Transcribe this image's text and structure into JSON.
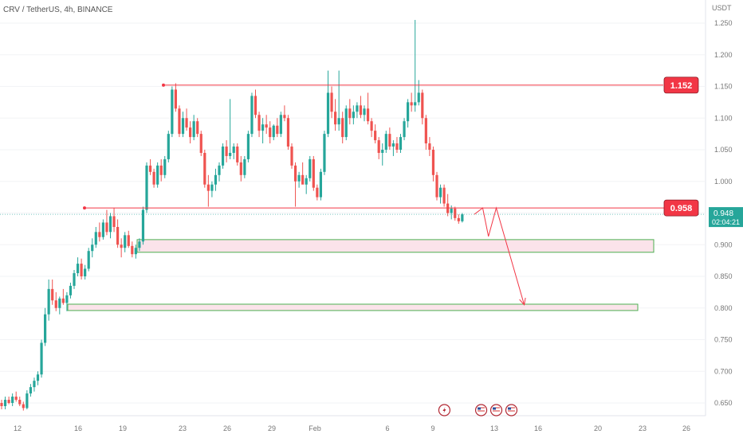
{
  "chart_data": {
    "type": "candlestick",
    "title": "CRV / TetherUS, 4h, BINANCE",
    "unit": "USDT",
    "ylim": [
      0.625,
      1.275
    ],
    "y_ticks": [
      "1.250",
      "1.200",
      "1.150",
      "1.100",
      "1.050",
      "1.000",
      "0.950",
      "0.900",
      "0.850",
      "0.800",
      "0.750",
      "0.700",
      "0.650"
    ],
    "x_ticks": [
      "12",
      "16",
      "19",
      "23",
      "26",
      "29",
      "Feb",
      "6",
      "9",
      "13",
      "16",
      "20",
      "23",
      "26"
    ],
    "candles": [
      [
        0.65,
        0.655,
        0.64,
        0.645
      ],
      [
        0.645,
        0.66,
        0.64,
        0.655
      ],
      [
        0.655,
        0.66,
        0.648,
        0.65
      ],
      [
        0.65,
        0.665,
        0.645,
        0.66
      ],
      [
        0.66,
        0.668,
        0.652,
        0.655
      ],
      [
        0.655,
        0.66,
        0.645,
        0.648
      ],
      [
        0.648,
        0.652,
        0.638,
        0.642
      ],
      [
        0.642,
        0.67,
        0.64,
        0.665
      ],
      [
        0.665,
        0.68,
        0.66,
        0.675
      ],
      [
        0.675,
        0.69,
        0.668,
        0.685
      ],
      [
        0.685,
        0.7,
        0.678,
        0.695
      ],
      [
        0.695,
        0.75,
        0.69,
        0.745
      ],
      [
        0.745,
        0.8,
        0.74,
        0.79
      ],
      [
        0.79,
        0.845,
        0.78,
        0.83
      ],
      [
        0.83,
        0.845,
        0.805,
        0.812
      ],
      [
        0.812,
        0.825,
        0.795,
        0.8
      ],
      [
        0.8,
        0.818,
        0.79,
        0.815
      ],
      [
        0.815,
        0.83,
        0.805,
        0.808
      ],
      [
        0.808,
        0.825,
        0.795,
        0.82
      ],
      [
        0.82,
        0.84,
        0.815,
        0.835
      ],
      [
        0.835,
        0.86,
        0.83,
        0.855
      ],
      [
        0.855,
        0.88,
        0.85,
        0.87
      ],
      [
        0.87,
        0.878,
        0.845,
        0.85
      ],
      [
        0.85,
        0.868,
        0.845,
        0.862
      ],
      [
        0.862,
        0.895,
        0.858,
        0.89
      ],
      [
        0.89,
        0.91,
        0.88,
        0.9
      ],
      [
        0.9,
        0.928,
        0.895,
        0.92
      ],
      [
        0.92,
        0.935,
        0.905,
        0.912
      ],
      [
        0.912,
        0.94,
        0.908,
        0.935
      ],
      [
        0.935,
        0.955,
        0.915,
        0.92
      ],
      [
        0.92,
        0.95,
        0.91,
        0.945
      ],
      [
        0.945,
        0.958,
        0.92,
        0.928
      ],
      [
        0.928,
        0.94,
        0.895,
        0.9
      ],
      [
        0.9,
        0.91,
        0.88,
        0.895
      ],
      [
        0.895,
        0.92,
        0.888,
        0.915
      ],
      [
        0.915,
        0.922,
        0.895,
        0.898
      ],
      [
        0.898,
        0.905,
        0.88,
        0.885
      ],
      [
        0.885,
        0.9,
        0.878,
        0.895
      ],
      [
        0.895,
        0.91,
        0.89,
        0.905
      ],
      [
        0.905,
        0.96,
        0.9,
        0.955
      ],
      [
        0.955,
        1.03,
        0.95,
        1.025
      ],
      [
        1.025,
        1.035,
        1.01,
        1.015
      ],
      [
        1.015,
        1.02,
        0.99,
        0.995
      ],
      [
        0.995,
        1.03,
        0.99,
        1.025
      ],
      [
        1.025,
        1.035,
        1.0,
        1.01
      ],
      [
        1.01,
        1.04,
        1.005,
        1.035
      ],
      [
        1.035,
        1.08,
        1.03,
        1.075
      ],
      [
        1.075,
        1.15,
        1.07,
        1.145
      ],
      [
        1.145,
        1.155,
        1.11,
        1.115
      ],
      [
        1.115,
        1.12,
        1.07,
        1.075
      ],
      [
        1.075,
        1.11,
        1.07,
        1.1
      ],
      [
        1.1,
        1.115,
        1.08,
        1.085
      ],
      [
        1.085,
        1.095,
        1.06,
        1.07
      ],
      [
        1.07,
        1.105,
        1.065,
        1.095
      ],
      [
        1.095,
        1.1,
        1.07,
        1.075
      ],
      [
        1.075,
        1.08,
        1.04,
        1.045
      ],
      [
        1.045,
        1.05,
        0.99,
        0.995
      ],
      [
        0.995,
        1.01,
        0.96,
        0.985
      ],
      [
        0.985,
        1.0,
        0.975,
        0.995
      ],
      [
        0.995,
        1.02,
        0.985,
        1.01
      ],
      [
        1.01,
        1.03,
        1.0,
        1.025
      ],
      [
        1.025,
        1.06,
        1.02,
        1.055
      ],
      [
        1.055,
        1.065,
        1.03,
        1.04
      ],
      [
        1.04,
        1.13,
        1.035,
        1.045
      ],
      [
        1.045,
        1.06,
        1.035,
        1.055
      ],
      [
        1.055,
        1.06,
        1.025,
        1.03
      ],
      [
        1.03,
        1.04,
        1.0,
        1.01
      ],
      [
        1.01,
        1.04,
        1.005,
        1.035
      ],
      [
        1.035,
        1.08,
        1.03,
        1.075
      ],
      [
        1.075,
        1.14,
        1.07,
        1.135
      ],
      [
        1.135,
        1.145,
        1.1,
        1.105
      ],
      [
        1.105,
        1.11,
        1.07,
        1.08
      ],
      [
        1.08,
        1.1,
        1.06,
        1.09
      ],
      [
        1.09,
        1.105,
        1.075,
        1.085
      ],
      [
        1.085,
        1.095,
        1.06,
        1.07
      ],
      [
        1.07,
        1.09,
        1.065,
        1.088
      ],
      [
        1.088,
        1.1,
        1.07,
        1.075
      ],
      [
        1.075,
        1.11,
        1.07,
        1.105
      ],
      [
        1.105,
        1.12,
        1.095,
        1.1
      ],
      [
        1.1,
        1.105,
        1.05,
        1.055
      ],
      [
        1.055,
        1.06,
        1.02,
        1.025
      ],
      [
        1.025,
        1.03,
        0.96,
        1.0
      ],
      [
        1.0,
        1.015,
        0.99,
        1.01
      ],
      [
        1.01,
        1.03,
        1.0,
        0.995
      ],
      [
        0.995,
        1.01,
        0.98,
        1.005
      ],
      [
        1.005,
        1.04,
        1.0,
        1.035
      ],
      [
        1.035,
        1.04,
        0.985,
        0.99
      ],
      [
        0.99,
        0.995,
        0.97,
        0.975
      ],
      [
        0.975,
        1.02,
        0.97,
        1.015
      ],
      [
        1.015,
        1.08,
        1.01,
        1.075
      ],
      [
        1.075,
        1.175,
        1.07,
        1.14
      ],
      [
        1.14,
        1.15,
        1.1,
        1.11
      ],
      [
        1.11,
        1.13,
        1.08,
        1.09
      ],
      [
        1.09,
        1.175,
        1.08,
        1.1
      ],
      [
        1.1,
        1.11,
        1.06,
        1.07
      ],
      [
        1.07,
        1.12,
        1.065,
        1.115
      ],
      [
        1.115,
        1.13,
        1.09,
        1.1
      ],
      [
        1.1,
        1.12,
        1.09,
        1.11
      ],
      [
        1.11,
        1.125,
        1.1,
        1.12
      ],
      [
        1.12,
        1.135,
        1.1,
        1.105
      ],
      [
        1.105,
        1.12,
        1.095,
        1.115
      ],
      [
        1.115,
        1.14,
        1.09,
        1.095
      ],
      [
        1.095,
        1.1,
        1.07,
        1.08
      ],
      [
        1.08,
        1.09,
        1.06,
        1.065
      ],
      [
        1.065,
        1.07,
        1.035,
        1.045
      ],
      [
        1.045,
        1.06,
        1.025,
        1.05
      ],
      [
        1.05,
        1.08,
        1.045,
        1.075
      ],
      [
        1.075,
        1.085,
        1.05,
        1.055
      ],
      [
        1.055,
        1.065,
        1.04,
        1.06
      ],
      [
        1.06,
        1.07,
        1.045,
        1.05
      ],
      [
        1.05,
        1.075,
        1.045,
        1.07
      ],
      [
        1.07,
        1.1,
        1.065,
        1.095
      ],
      [
        1.095,
        1.13,
        1.085,
        1.125
      ],
      [
        1.125,
        1.14,
        1.11,
        1.12
      ],
      [
        1.12,
        1.255,
        1.11,
        1.125
      ],
      [
        1.125,
        1.16,
        1.12,
        1.14
      ],
      [
        1.14,
        1.145,
        1.09,
        1.1
      ],
      [
        1.1,
        1.105,
        1.05,
        1.06
      ],
      [
        1.06,
        1.07,
        1.04,
        1.05
      ],
      [
        1.05,
        1.055,
        1.0,
        1.01
      ],
      [
        1.01,
        1.015,
        0.97,
        0.975
      ],
      [
        0.975,
        0.995,
        0.965,
        0.99
      ],
      [
        0.99,
        0.995,
        0.96,
        0.965
      ],
      [
        0.965,
        0.98,
        0.945,
        0.95
      ],
      [
        0.95,
        0.962,
        0.94,
        0.957
      ],
      [
        0.957,
        0.96,
        0.938,
        0.942
      ],
      [
        0.942,
        0.948,
        0.933,
        0.937
      ],
      [
        0.937,
        0.95,
        0.935,
        0.948
      ]
    ],
    "horizontal_lines": [
      {
        "price": 1.152,
        "label": "1.152",
        "color": "#f23645"
      },
      {
        "price": 0.958,
        "label": "0.958",
        "color": "#f23645"
      }
    ],
    "zones": [
      {
        "top": 0.908,
        "bottom": 0.888,
        "fill": "#fbe3ea",
        "border": "#4caf50"
      },
      {
        "top": 0.806,
        "bottom": 0.796,
        "fill": "#fbe3ea",
        "border": "#4caf50"
      }
    ],
    "projection": [
      [
        0.9415,
        0.948
      ],
      [
        0.958,
        0.958
      ],
      [
        0.9695,
        0.913
      ],
      [
        0.985,
        0.958
      ],
      [
        1.0405,
        0.805
      ]
    ],
    "current_price": {
      "label": "0.948",
      "countdown": "02:04:21",
      "color": "#26a69a"
    },
    "colors": {
      "up": "#26a69a",
      "down": "#ef5350",
      "line": "#f23645",
      "projection": "#f23645"
    }
  },
  "events": [
    {
      "icon": "lightning-icon",
      "position": 0.882
    },
    {
      "icon": "us-flag-icon",
      "position": 0.955
    },
    {
      "icon": "us-flag-icon",
      "position": 0.985
    },
    {
      "icon": "us-flag-icon",
      "position": 1.015
    }
  ]
}
